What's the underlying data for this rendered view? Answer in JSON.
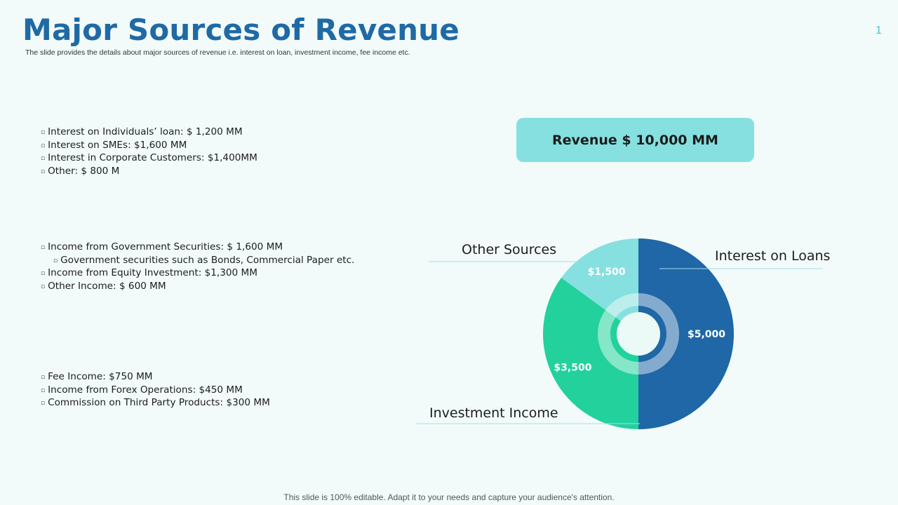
{
  "header": {
    "title": "Major Sources of Revenue",
    "subtitle": "The slide provides the details about major sources of revenue i.e. interest on loan, investment income, fee income etc.",
    "page_number": "1"
  },
  "groups": {
    "loans": [
      {
        "text": "Interest on Individuals’ loan: $ 1,200 MM",
        "level": 1
      },
      {
        "text": "Interest on SMEs: $1,600 MM",
        "level": 1
      },
      {
        "text": "Interest in Corporate Customers: $1,400MM",
        "level": 1
      },
      {
        "text": "Other: $ 800 M",
        "level": 1
      }
    ],
    "investment": [
      {
        "text": "Income from Government Securities: $ 1,600 MM",
        "level": 1
      },
      {
        "text": "Government securities such as Bonds, Commercial Paper etc.",
        "level": 2
      },
      {
        "text": "Income from Equity Investment: $1,300 MM",
        "level": 1
      },
      {
        "text": "Other Income: $ 600 MM",
        "level": 1
      }
    ],
    "other": [
      {
        "text": "Fee Income: $750 MM",
        "level": 1
      },
      {
        "text": "Income from Forex Operations: $450 MM",
        "level": 1
      },
      {
        "text": "Commission on Third Party Products: $300 MM",
        "level": 1
      }
    ]
  },
  "revenue_box": {
    "label": "Revenue $ 10,000 MM"
  },
  "chart_data": {
    "type": "pie",
    "categories": [
      "Interest on Loans",
      "Investment Income",
      "Other Sources"
    ],
    "values": [
      5000,
      3500,
      1500
    ],
    "data_labels": [
      "$5,000",
      "$3,500",
      "$1,500"
    ],
    "colors": [
      "#1f67a6",
      "#22d19c",
      "#86e0e0"
    ],
    "legend": "callout-labels"
  },
  "footer": {
    "text": "This slide is 100% editable. Adapt it to your needs and capture your audience's attention."
  },
  "colors": {
    "title": "#1f6aa5",
    "background": "#f2fbfa",
    "callout_line": "#a8dced",
    "page_number": "#4cc3d9"
  }
}
